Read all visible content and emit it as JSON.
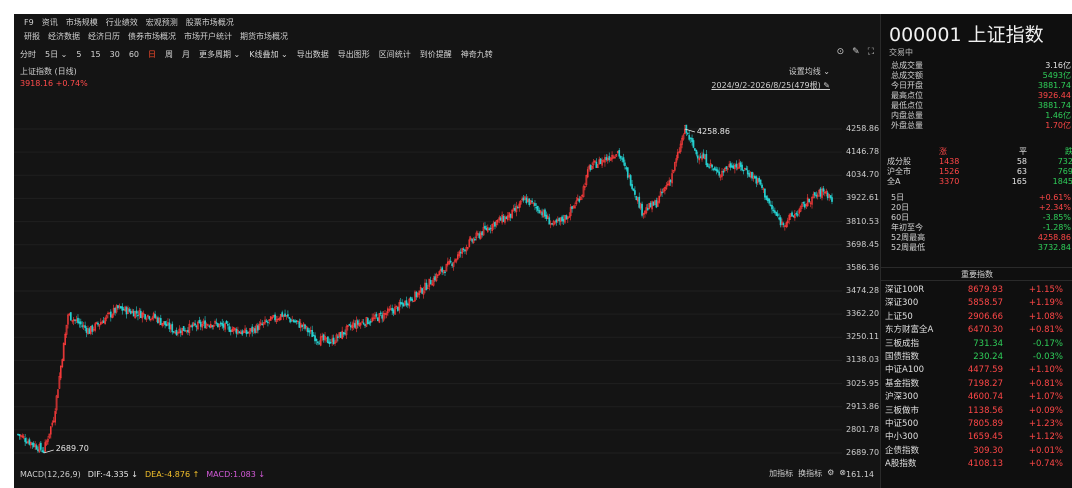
{
  "menu": {
    "row1": [
      "F9",
      "资讯",
      "市场规模",
      "行业绩效",
      "宏观预测",
      "股票市场概况"
    ],
    "row2": [
      "研报",
      "经济数据",
      "经济日历",
      "债券市场概况",
      "市场开户统计",
      "期货市场概况"
    ]
  },
  "toolbar": {
    "items": [
      "分时",
      "5日 ⌄",
      "5",
      "15",
      "30",
      "60",
      "日",
      "周",
      "月",
      "更多周期 ⌄",
      "K线叠加 ⌄",
      "导出数据",
      "导出图形",
      "区间统计",
      "到价提醒",
      "神奇九转"
    ],
    "active_index": 6,
    "icons": [
      "settings-circle-icon",
      "draw-pen-icon",
      "fullscreen-icon"
    ],
    "icon_glyphs": [
      "⊙",
      "✎",
      "⛶"
    ]
  },
  "chart": {
    "title": "上证指数 (日线)",
    "quote": "3918.16 +0.74%",
    "settings_label": "设置均线 ⌄",
    "range_label": "2024/9/2-2026/8/25(479根) ✎",
    "y_ticks": [
      "4258.86",
      "4146.78",
      "4034.70",
      "3922.61",
      "3810.53",
      "3698.45",
      "3586.36",
      "3474.28",
      "3362.20",
      "3250.11",
      "3138.03",
      "3025.95",
      "2913.86",
      "2801.78",
      "2689.70"
    ],
    "high_label": "4258.86",
    "low_label": "2689.70",
    "up_color": "#ff3b3b",
    "down_color": "#25d0d0"
  },
  "chart_data": {
    "type": "candlestick",
    "date_range": [
      "2024/9/2",
      "2026/8/25"
    ],
    "count": 479,
    "ylim": [
      2689.7,
      4258.86
    ],
    "high": 4258.86,
    "low": 2689.7,
    "close_path": [
      [
        0,
        2780
      ],
      [
        18,
        2700
      ],
      [
        25,
        2860
      ],
      [
        35,
        3360
      ],
      [
        50,
        3280
      ],
      [
        70,
        3390
      ],
      [
        95,
        3350
      ],
      [
        110,
        3280
      ],
      [
        135,
        3320
      ],
      [
        160,
        3270
      ],
      [
        185,
        3360
      ],
      [
        200,
        3300
      ],
      [
        210,
        3240
      ],
      [
        220,
        3230
      ],
      [
        235,
        3310
      ],
      [
        250,
        3340
      ],
      [
        265,
        3390
      ],
      [
        280,
        3460
      ],
      [
        295,
        3560
      ],
      [
        305,
        3620
      ],
      [
        315,
        3700
      ],
      [
        325,
        3760
      ],
      [
        335,
        3810
      ],
      [
        345,
        3840
      ],
      [
        355,
        3920
      ],
      [
        365,
        3870
      ],
      [
        375,
        3790
      ],
      [
        385,
        3840
      ],
      [
        395,
        3950
      ],
      [
        400,
        4070
      ],
      [
        410,
        4110
      ],
      [
        420,
        4150
      ],
      [
        430,
        3990
      ],
      [
        437,
        3860
      ],
      [
        447,
        3900
      ],
      [
        457,
        4020
      ],
      [
        462,
        4130
      ],
      [
        467,
        4258.86
      ],
      [
        475,
        4140
      ],
      [
        480,
        4120
      ],
      [
        490,
        4040
      ],
      [
        500,
        4090
      ],
      [
        510,
        4060
      ],
      [
        520,
        3990
      ],
      [
        527,
        3880
      ],
      [
        535,
        3800
      ],
      [
        545,
        3850
      ],
      [
        555,
        3920
      ],
      [
        565,
        3960
      ],
      [
        570,
        3918.16
      ]
    ],
    "macd": {
      "DIF": -4.335,
      "DEA": -4.876,
      "MACD": 1.083
    }
  },
  "macd_bar": {
    "name": "MACD(12,26,9)",
    "dif": "DIF:-4.335 ↓",
    "dea": "DEA:-4.876 ↑",
    "macd": "MACD:1.083 ↓",
    "right_items": [
      "加指标",
      "换指标",
      "⚙",
      "⊗"
    ],
    "axis_value": "161.14"
  },
  "panel": {
    "title": "000001 上证指数",
    "status": "交易中",
    "stats": [
      {
        "label": "总成交量",
        "value": "3.16亿",
        "color": "c-white"
      },
      {
        "label": "总成交额",
        "value": "5493亿",
        "color": "c-green"
      },
      {
        "label": "今日开盘",
        "value": "3881.74",
        "color": "c-green"
      },
      {
        "label": "最高点位",
        "value": "3926.44",
        "color": "c-red"
      },
      {
        "label": "最低点位",
        "value": "3881.74",
        "color": "c-green"
      },
      {
        "label": "内盘总量",
        "value": "1.46亿",
        "color": "c-green"
      },
      {
        "label": "外盘总量",
        "value": "1.70亿",
        "color": "c-red"
      }
    ],
    "breadth_header": [
      "",
      "涨",
      "平",
      "跌"
    ],
    "breadth": [
      {
        "label": "成分股",
        "up": "1438",
        "flat": "58",
        "down": "732"
      },
      {
        "label": "沪全市",
        "up": "1526",
        "flat": "63",
        "down": "769"
      },
      {
        "label": "全A",
        "up": "3370",
        "flat": "165",
        "down": "1845"
      }
    ],
    "perf": [
      {
        "label": "5日",
        "value": "+0.61%",
        "color": "c-red"
      },
      {
        "label": "20日",
        "value": "+2.34%",
        "color": "c-red"
      },
      {
        "label": "60日",
        "value": "-3.85%",
        "color": "c-green"
      },
      {
        "label": "年初至今",
        "value": "-1.28%",
        "color": "c-green"
      },
      {
        "label": "52周最高",
        "value": "4258.86",
        "color": "c-red"
      },
      {
        "label": "52周最低",
        "value": "3732.84",
        "color": "c-green"
      }
    ],
    "index_header": "重要指数",
    "indices": [
      {
        "name": "深证100R",
        "price": "8679.93",
        "change": "+1.15%",
        "color": "c-red"
      },
      {
        "name": "深证300",
        "price": "5858.57",
        "change": "+1.19%",
        "color": "c-red"
      },
      {
        "name": "上证50",
        "price": "2906.66",
        "change": "+1.08%",
        "color": "c-red"
      },
      {
        "name": "东方财富全A",
        "price": "6470.30",
        "change": "+0.81%",
        "color": "c-red"
      },
      {
        "name": "三板成指",
        "price": "731.34",
        "change": "-0.17%",
        "color": "c-green"
      },
      {
        "name": "国债指数",
        "price": "230.24",
        "change": "-0.03%",
        "color": "c-green"
      },
      {
        "name": "中证A100",
        "price": "4477.59",
        "change": "+1.10%",
        "color": "c-red"
      },
      {
        "name": "基金指数",
        "price": "7198.27",
        "change": "+0.81%",
        "color": "c-red"
      },
      {
        "name": "沪深300",
        "price": "4600.74",
        "change": "+1.07%",
        "color": "c-red"
      },
      {
        "name": "三板做市",
        "price": "1138.56",
        "change": "+0.09%",
        "color": "c-red"
      },
      {
        "name": "中证500",
        "price": "7805.89",
        "change": "+1.23%",
        "color": "c-red"
      },
      {
        "name": "中小300",
        "price": "1659.45",
        "change": "+1.12%",
        "color": "c-red"
      },
      {
        "name": "企债指数",
        "price": "309.30",
        "change": "+0.01%",
        "color": "c-red"
      },
      {
        "name": "A股指数",
        "price": "4108.13",
        "change": "+0.74%",
        "color": "c-red"
      }
    ]
  }
}
